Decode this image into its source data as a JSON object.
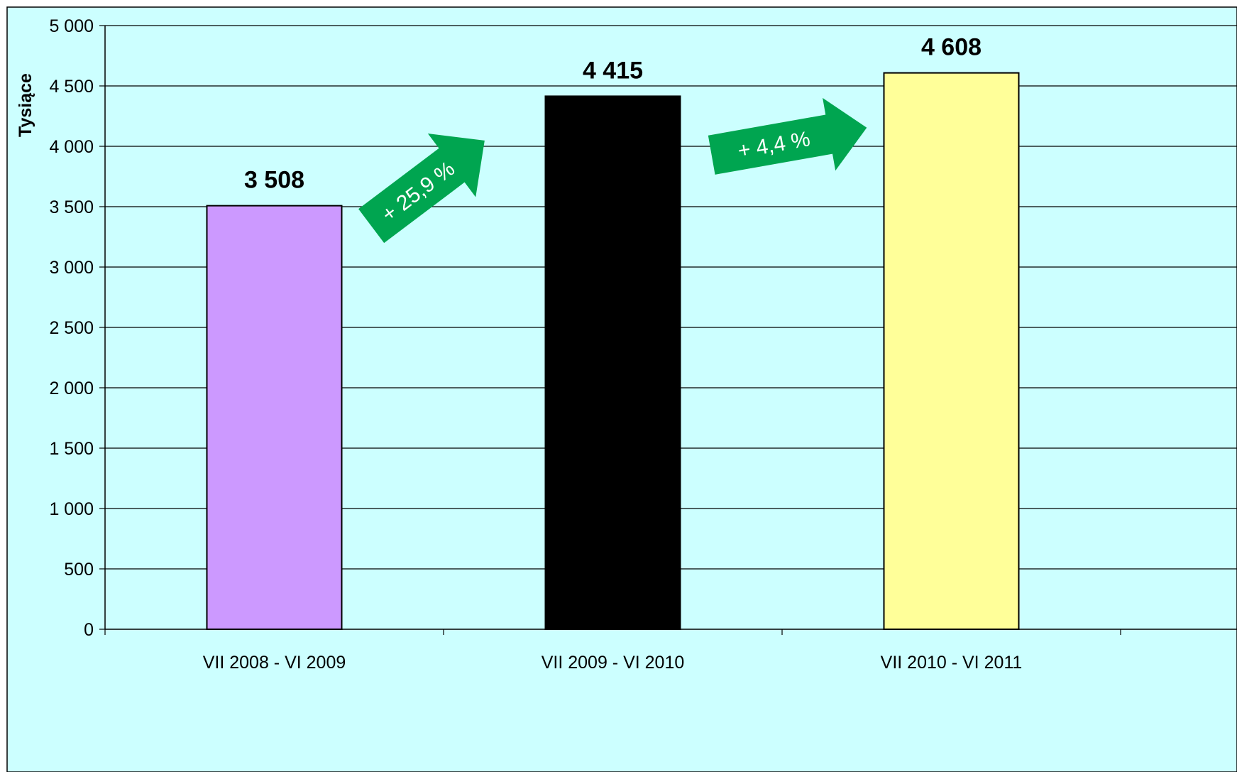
{
  "chart_data": {
    "type": "bar",
    "categories": [
      "VII 2008 - VI 2009",
      "VII 2009 - VI 2010",
      "VII 2010 - VI 2011"
    ],
    "values": [
      3508,
      4415,
      4608
    ],
    "value_labels": [
      "3 508",
      "4 415",
      "4 608"
    ],
    "ylabel": "Tysiące",
    "ylim": [
      0,
      5000
    ],
    "yticks": [
      0,
      500,
      1000,
      1500,
      2000,
      2500,
      3000,
      3500,
      4000,
      4500,
      5000
    ],
    "ytick_labels": [
      "0",
      "500",
      "1 000",
      "1 500",
      "2 000",
      "2 500",
      "3 000",
      "3 500",
      "4 000",
      "4 500",
      "5 000"
    ],
    "grid": true,
    "bar_colors": [
      "#cc99ff",
      "#000000",
      "#ffff99"
    ],
    "background_color": "#ccffff",
    "annotations": [
      {
        "text": "+ 25,9 %",
        "from": "VII 2008 - VI 2009",
        "to": "VII 2009 - VI 2010",
        "color": "#00a550"
      },
      {
        "text": "+ 4,4 %",
        "from": "VII 2009 - VI 2010",
        "to": "VII 2010 - VI 2011",
        "color": "#00a550"
      }
    ]
  }
}
